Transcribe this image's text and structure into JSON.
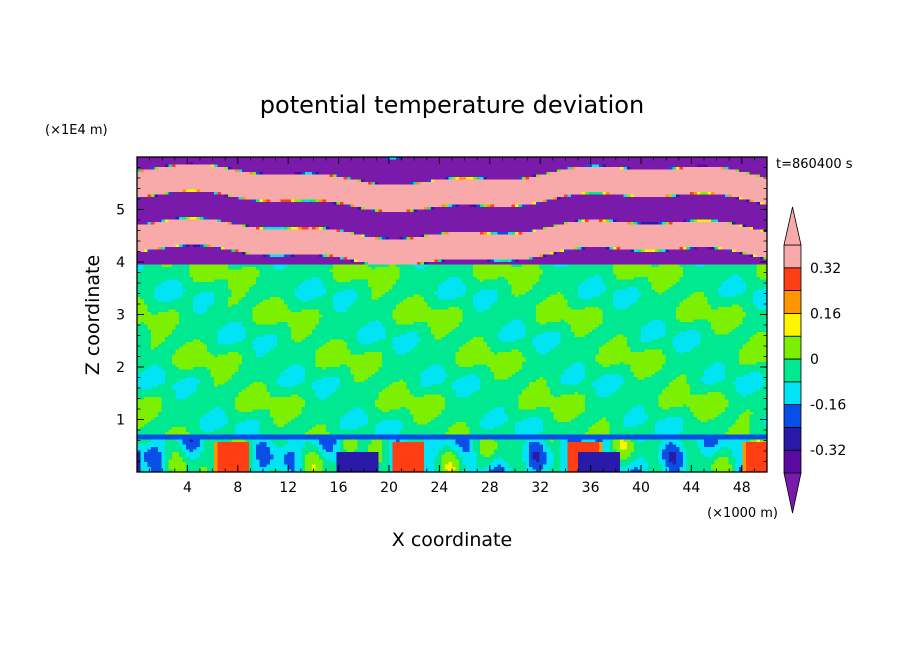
{
  "chart_data": {
    "type": "heatmap",
    "title": "potential temperature deviation",
    "xlabel": "X coordinate",
    "ylabel": "Z coordinate",
    "x_unit": "(×1000 m)",
    "y_unit": "(×1E4 m)",
    "time_label": "t=860400 s",
    "xlim": [
      0,
      50
    ],
    "ylim": [
      0,
      6
    ],
    "x_ticks": [
      4,
      8,
      12,
      16,
      20,
      24,
      28,
      32,
      36,
      40,
      44,
      48
    ],
    "y_ticks": [
      1,
      2,
      3,
      4,
      5
    ],
    "colorbar": {
      "levels": [
        -0.4,
        -0.32,
        -0.24,
        -0.16,
        -0.08,
        0,
        0.08,
        0.16,
        0.24,
        0.32,
        0.4
      ],
      "labels": [
        "0.32",
        "0.16",
        "0",
        "-0.16",
        "-0.32"
      ],
      "label_values": [
        0.32,
        0.16,
        0,
        -0.16,
        -0.32
      ],
      "colors": [
        "#5a0aa0",
        "#2a1aa8",
        "#0a4ee8",
        "#00e4f4",
        "#00e890",
        "#7cf000",
        "#fff400",
        "#ff9600",
        "#ff3e14",
        "#f8aaaa"
      ],
      "extend_low_color": "#7a1aaa",
      "extend_high_color": "#f8aaaa"
    },
    "regions": [
      {
        "name": "upper-layer",
        "z_range": [
          3.95,
          6.0
        ],
        "pattern": "alternating bands of about -0.4 and +0.4"
      },
      {
        "name": "mid-layer",
        "z_range": [
          0.72,
          3.95
        ],
        "value_range": [
          -0.08,
          0.08
        ]
      },
      {
        "name": "lower-layer",
        "z_range": [
          0.0,
          0.72
        ],
        "value_range": [
          -0.4,
          0.32
        ]
      }
    ]
  }
}
